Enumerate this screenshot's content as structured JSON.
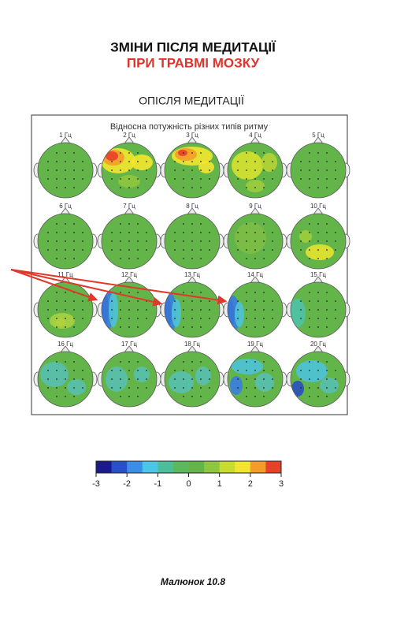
{
  "header": {
    "title": "ЗМІНИ ПІСЛЯ МЕДИТАЦІЇ",
    "subtitle": "ПРИ ТРАВМІ МОЗКУ",
    "section": "ОПІСЛЯ МЕДИТАЦІЇ"
  },
  "panel": {
    "title": "Відносна потужність різних типів ритму",
    "heads": [
      "1 Гц",
      "2 Гц",
      "3 Гц",
      "4 Гц",
      "5 Гц",
      "6 Гц",
      "7 Гц",
      "8 Гц",
      "9 Гц",
      "10 Гц",
      "11 Гц",
      "12 Гц",
      "13 Гц",
      "14 Гц",
      "15 Гц",
      "16 Гц",
      "17 Гц",
      "18 Гц",
      "19 Гц",
      "20 Гц"
    ]
  },
  "colorbar": {
    "ticks": [
      -3,
      -2,
      -1,
      0,
      1,
      2,
      3
    ]
  },
  "caption": "Малюнок 10.8"
}
